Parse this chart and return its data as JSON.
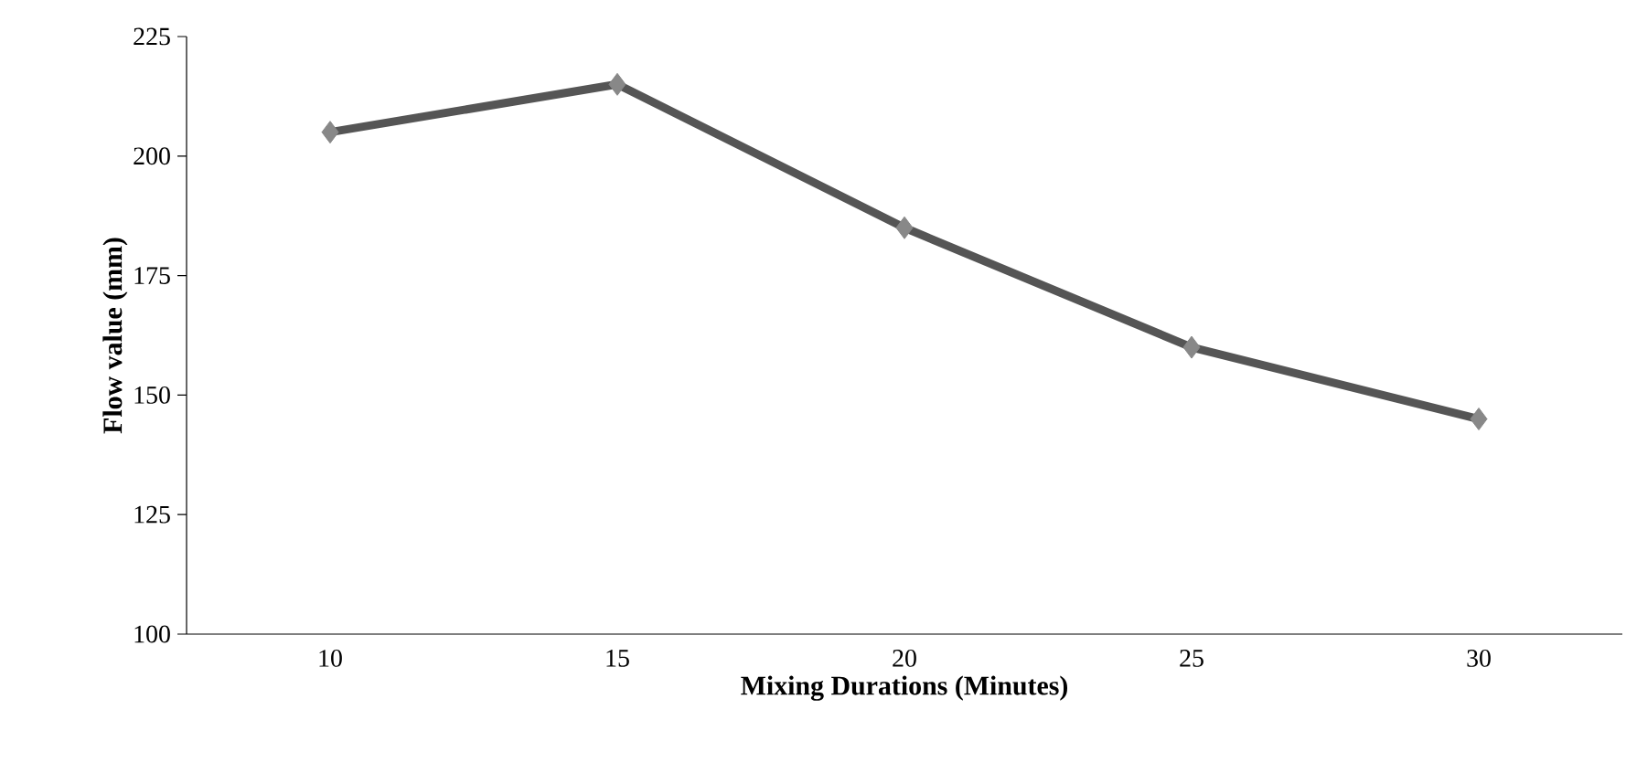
{
  "chart_data": {
    "type": "line",
    "xlabel": "Mixing Durations (Minutes)",
    "ylabel": "Flow value (mm)",
    "categories": [
      "10",
      "15",
      "20",
      "25",
      "30"
    ],
    "series": [
      {
        "color": "#555555",
        "values": [
          205,
          215,
          185,
          160,
          145
        ]
      }
    ],
    "ylim": [
      100,
      225
    ],
    "yticks": [
      100,
      125,
      150,
      175,
      200,
      225
    ],
    "marker": "diamond",
    "line_style": "solid"
  }
}
